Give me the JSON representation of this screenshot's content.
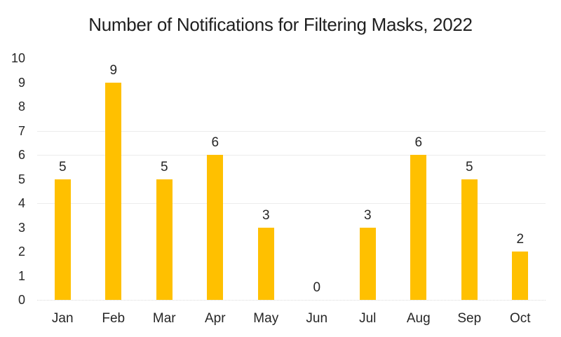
{
  "chart_data": {
    "type": "bar",
    "title": "Number of Notifications for Filtering Masks, 2022",
    "categories": [
      "Jan",
      "Feb",
      "Mar",
      "Apr",
      "May",
      "Jun",
      "Jul",
      "Aug",
      "Sep",
      "Oct"
    ],
    "values": [
      5,
      9,
      5,
      6,
      3,
      0,
      3,
      6,
      5,
      2
    ],
    "xlabel": "",
    "ylabel": "",
    "ylim": [
      0,
      10
    ],
    "yticks": [
      0,
      1,
      2,
      3,
      4,
      5,
      6,
      7,
      8,
      9,
      10
    ],
    "visible_gridlines_at": [
      4,
      6,
      7
    ],
    "data_labels_shown": true,
    "legend": "none",
    "colors": {
      "bar": "#FFC000",
      "gridline": "#ECECEC",
      "axis_line": "#D9D9D9",
      "text": "#262626",
      "title_text": "#1F1F1F",
      "background": "#FFFFFF"
    }
  }
}
